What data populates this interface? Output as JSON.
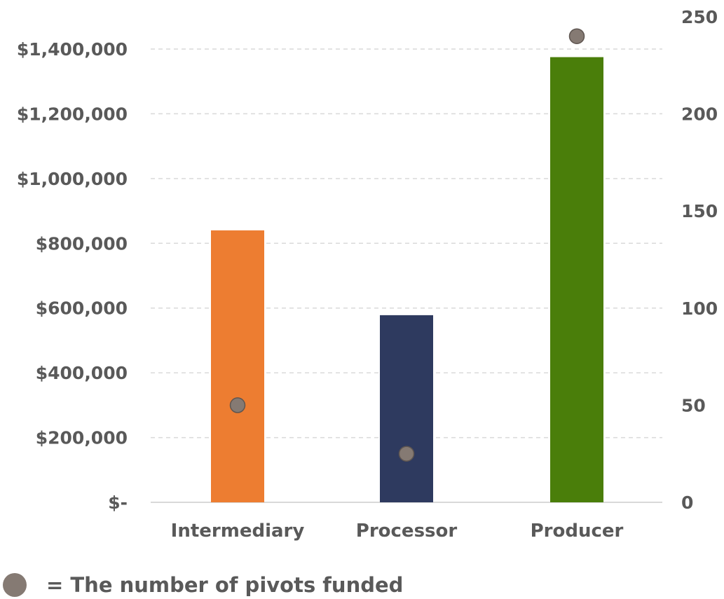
{
  "chart_data": {
    "type": "bar",
    "categories": [
      "Intermediary",
      "Processor",
      "Producer"
    ],
    "bar_series": {
      "axis": "left",
      "values": [
        840000,
        578000,
        1375000
      ],
      "colors": [
        "#ed7d31",
        "#2e3a5f",
        "#4a7e0a"
      ]
    },
    "dot_series": {
      "name": "= The number of pivots funded",
      "axis": "right",
      "values": [
        50,
        25,
        240
      ],
      "color": "#857a73"
    },
    "y_left": {
      "ylim": [
        0,
        1400000
      ],
      "ticks": [
        0,
        200000,
        400000,
        600000,
        800000,
        1000000,
        1200000,
        1400000
      ],
      "tick_labels": [
        "$-",
        "$200,000",
        "$400,000",
        "$600,000",
        "$800,000",
        "$1,000,000",
        "$1,200,000",
        "$1,400,000"
      ]
    },
    "y_right": {
      "ylim": [
        0,
        250
      ],
      "ticks": [
        0,
        50,
        100,
        150,
        200,
        250
      ],
      "tick_labels": [
        "0",
        "50",
        "100",
        "150",
        "200",
        "250"
      ]
    },
    "grid": true,
    "legend_position": "bottom-left"
  },
  "legend": {
    "text": "= The number of pivots funded"
  }
}
